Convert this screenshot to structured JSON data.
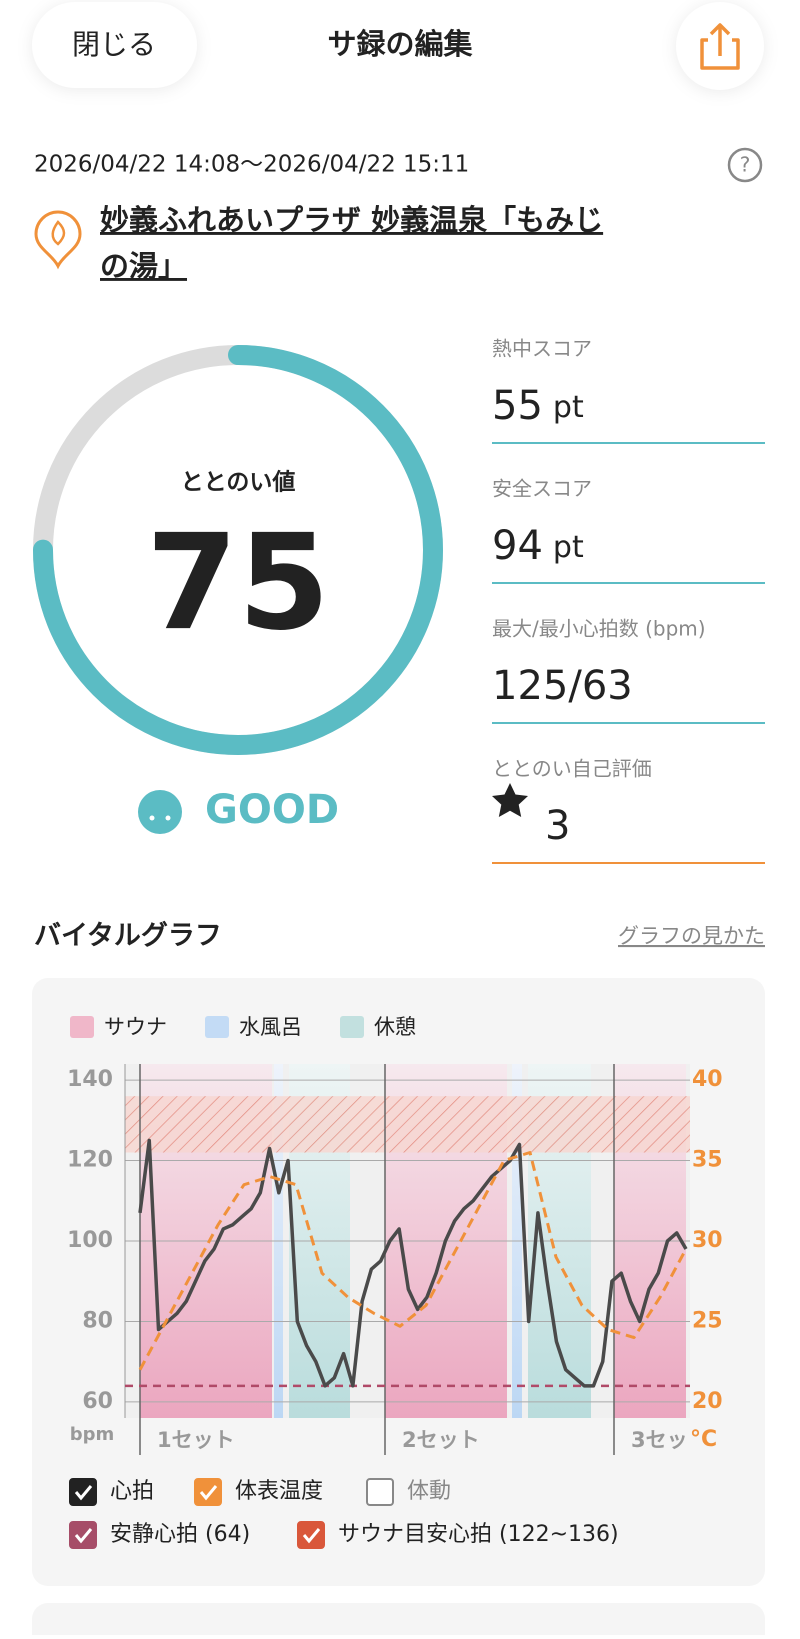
{
  "header": {
    "close": "閉じる",
    "title": "サ録の編集"
  },
  "session": {
    "period": "2026/04/22 14:08～2026/04/22 15:11",
    "facility": [
      "妙義ふれあいプラザ 妙義温泉「もみじ",
      "の湯」"
    ]
  },
  "totonoi": {
    "label": "ととのい値",
    "value": 75,
    "lim": [
      0,
      100
    ],
    "rating": "GOOD"
  },
  "scores": [
    {
      "label": "熱中スコア",
      "value": 55,
      "unit": "pt"
    },
    {
      "label": "安全スコア",
      "value": 94,
      "unit": "pt"
    },
    {
      "label": "最大/最小心拍数 (bpm)",
      "value": "125/63"
    },
    {
      "label": "ととのい自己評価",
      "value": 3
    }
  ],
  "graph": {
    "title": "バイタルグラフ",
    "help": "グラフの見かた",
    "legend": [
      "サウナ",
      "水風呂",
      "休憩"
    ],
    "chart_data": {
      "type": "line",
      "ylabel": "bpm",
      "y2label": "°C",
      "ylim": [
        56,
        144
      ],
      "yticks": [
        60,
        80,
        100,
        120,
        140
      ],
      "y2lim": [
        19,
        41
      ],
      "y2ticks": [
        20,
        25,
        30,
        35,
        40
      ],
      "set_labels": [
        "1セット",
        "2セット",
        "3セッ"
      ],
      "series": [
        {
          "name": "心拍",
          "color": "#4a4a4a",
          "values": [
            107,
            125,
            78,
            80,
            82,
            85,
            90,
            95,
            98,
            103,
            104,
            106,
            108,
            112,
            123,
            112,
            120,
            80,
            74,
            70,
            64,
            66,
            72,
            64,
            85,
            93,
            95,
            100,
            103,
            88,
            83,
            86,
            92,
            100,
            105,
            108,
            110,
            113,
            116,
            118,
            120,
            124,
            80,
            107,
            90,
            75,
            68,
            66,
            64,
            64,
            70,
            90,
            92,
            85,
            80,
            88,
            92,
            100,
            102,
            98
          ]
        },
        {
          "name": "体表温度",
          "color": "#f0913a",
          "axis": "y2",
          "values": [
            22,
            25,
            28,
            31,
            33.5,
            34,
            33.5,
            28,
            26.5,
            25.5,
            24.7,
            26,
            29,
            32,
            35,
            35.5,
            29,
            26,
            24.5,
            24,
            26.5,
            29.5
          ]
        }
      ],
      "resting_hr": 64,
      "target_hr": [
        122,
        136
      ]
    },
    "motion": "体動",
    "resting_label": "安静心拍 (64)",
    "target_label": "サウナ目安心拍 (122~136)"
  }
}
